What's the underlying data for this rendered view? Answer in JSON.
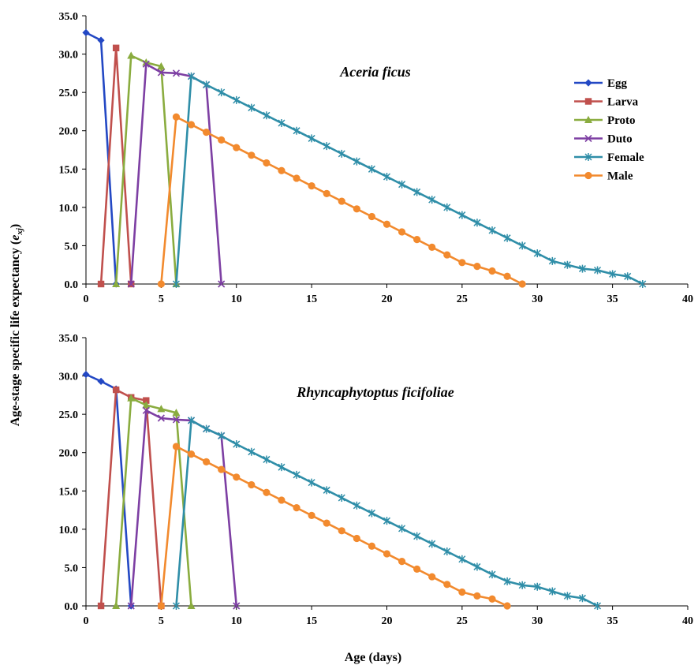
{
  "chart_data": [
    {
      "type": "line",
      "title": "Aceria ficus",
      "xlabel": "Age (days)",
      "ylabel": "Age-stage specific life expectancy (exj)",
      "xlim": [
        0,
        40
      ],
      "ylim": [
        0,
        35
      ],
      "xticks": [
        "0",
        "5",
        "10",
        "15",
        "20",
        "25",
        "30",
        "35",
        "40"
      ],
      "yticks": [
        "0.0",
        "5.0",
        "10.0",
        "15.0",
        "20.0",
        "25.0",
        "30.0",
        "35.0"
      ],
      "legend_position": "right",
      "grid": false,
      "series": [
        {
          "name": "Egg",
          "color": "#2348c4",
          "marker": "diamond",
          "x": [
            0,
            1,
            2
          ],
          "y": [
            32.8,
            31.8,
            0
          ]
        },
        {
          "name": "Larva",
          "color": "#c0504d",
          "marker": "square",
          "x": [
            1,
            2,
            3
          ],
          "y": [
            0,
            30.8,
            0
          ]
        },
        {
          "name": "Proto",
          "color": "#8aac3f",
          "marker": "triangle",
          "x": [
            2,
            3,
            4,
            5,
            6
          ],
          "y": [
            0,
            29.8,
            28.9,
            28.4,
            0
          ]
        },
        {
          "name": "Duto",
          "color": "#7d3fa3",
          "marker": "x",
          "x": [
            3,
            4,
            5,
            6,
            7,
            8,
            9
          ],
          "y": [
            0,
            28.7,
            27.6,
            27.5,
            27.1,
            26.0,
            0
          ]
        },
        {
          "name": "Female",
          "color": "#2f8ea8",
          "marker": "star",
          "x": [
            6,
            7,
            8,
            9,
            10,
            11,
            12,
            13,
            14,
            15,
            16,
            17,
            18,
            19,
            20,
            21,
            22,
            23,
            24,
            25,
            26,
            27,
            28,
            29,
            30,
            31,
            32,
            33,
            34,
            35,
            36,
            37
          ],
          "y": [
            0,
            27.1,
            26.0,
            25.0,
            24.0,
            23.0,
            22.0,
            21.0,
            20.0,
            19.0,
            18.0,
            17.0,
            16.0,
            15.0,
            14.0,
            13.0,
            12.0,
            11.0,
            10.0,
            9.0,
            8.0,
            7.0,
            6.0,
            5.0,
            4.0,
            3.0,
            2.5,
            2.0,
            1.8,
            1.3,
            1.0,
            0
          ]
        },
        {
          "name": "Male",
          "color": "#f28a2e",
          "marker": "circle",
          "x": [
            5,
            6,
            7,
            8,
            9,
            10,
            11,
            12,
            13,
            14,
            15,
            16,
            17,
            18,
            19,
            20,
            21,
            22,
            23,
            24,
            25,
            26,
            27,
            28,
            29
          ],
          "y": [
            0,
            21.8,
            20.8,
            19.8,
            18.8,
            17.8,
            16.8,
            15.8,
            14.8,
            13.8,
            12.8,
            11.8,
            10.8,
            9.8,
            8.8,
            7.8,
            6.8,
            5.8,
            4.8,
            3.8,
            2.8,
            2.3,
            1.7,
            1.0,
            0
          ]
        }
      ]
    },
    {
      "type": "line",
      "title": "Rhyncaphytoptus ficifoliae",
      "xlabel": "Age (days)",
      "ylabel": "Age-stage specific life expectancy (exj)",
      "xlim": [
        0,
        40
      ],
      "ylim": [
        0,
        35
      ],
      "xticks": [
        "0",
        "5",
        "10",
        "15",
        "20",
        "25",
        "30",
        "35",
        "40"
      ],
      "yticks": [
        "0.0",
        "5.0",
        "10.0",
        "15.0",
        "20.0",
        "25.0",
        "30.0",
        "35.0"
      ],
      "grid": false,
      "series": [
        {
          "name": "Egg",
          "color": "#2348c4",
          "marker": "diamond",
          "x": [
            0,
            1,
            2,
            3
          ],
          "y": [
            30.2,
            29.3,
            28.3,
            0
          ]
        },
        {
          "name": "Larva",
          "color": "#c0504d",
          "marker": "square",
          "x": [
            1,
            2,
            3,
            4,
            5
          ],
          "y": [
            0,
            28.2,
            27.2,
            26.8,
            0
          ]
        },
        {
          "name": "Proto",
          "color": "#8aac3f",
          "marker": "triangle",
          "x": [
            2,
            3,
            4,
            5,
            6,
            7
          ],
          "y": [
            0,
            27.1,
            26.2,
            25.7,
            25.2,
            0
          ]
        },
        {
          "name": "Duto",
          "color": "#7d3fa3",
          "marker": "x",
          "x": [
            3,
            4,
            5,
            6,
            7,
            8,
            9,
            10
          ],
          "y": [
            0,
            25.5,
            24.5,
            24.3,
            24.2,
            23.1,
            22.2,
            0
          ]
        },
        {
          "name": "Female",
          "color": "#2f8ea8",
          "marker": "star",
          "x": [
            6,
            7,
            8,
            9,
            10,
            11,
            12,
            13,
            14,
            15,
            16,
            17,
            18,
            19,
            20,
            21,
            22,
            23,
            24,
            25,
            26,
            27,
            28,
            29,
            30,
            31,
            32,
            33,
            34
          ],
          "y": [
            0,
            24.2,
            23.1,
            22.2,
            21.1,
            20.1,
            19.1,
            18.1,
            17.1,
            16.1,
            15.1,
            14.1,
            13.1,
            12.1,
            11.1,
            10.1,
            9.1,
            8.1,
            7.1,
            6.1,
            5.1,
            4.1,
            3.2,
            2.7,
            2.5,
            1.9,
            1.3,
            1.0,
            0
          ]
        },
        {
          "name": "Male",
          "color": "#f28a2e",
          "marker": "circle",
          "x": [
            5,
            6,
            7,
            8,
            9,
            10,
            11,
            12,
            13,
            14,
            15,
            16,
            17,
            18,
            19,
            20,
            21,
            22,
            23,
            24,
            25,
            26,
            27,
            28
          ],
          "y": [
            0,
            20.8,
            19.8,
            18.8,
            17.8,
            16.8,
            15.8,
            14.8,
            13.8,
            12.8,
            11.8,
            10.8,
            9.8,
            8.8,
            7.8,
            6.8,
            5.8,
            4.8,
            3.8,
            2.8,
            1.8,
            1.3,
            0.9,
            0
          ]
        }
      ]
    }
  ],
  "labels": {
    "ylabel_main": "Age-stage specific life expectancy (",
    "ylabel_sym": "e",
    "ylabel_sub": "xj",
    "ylabel_close": ")",
    "xlabel": "Age (days)"
  }
}
